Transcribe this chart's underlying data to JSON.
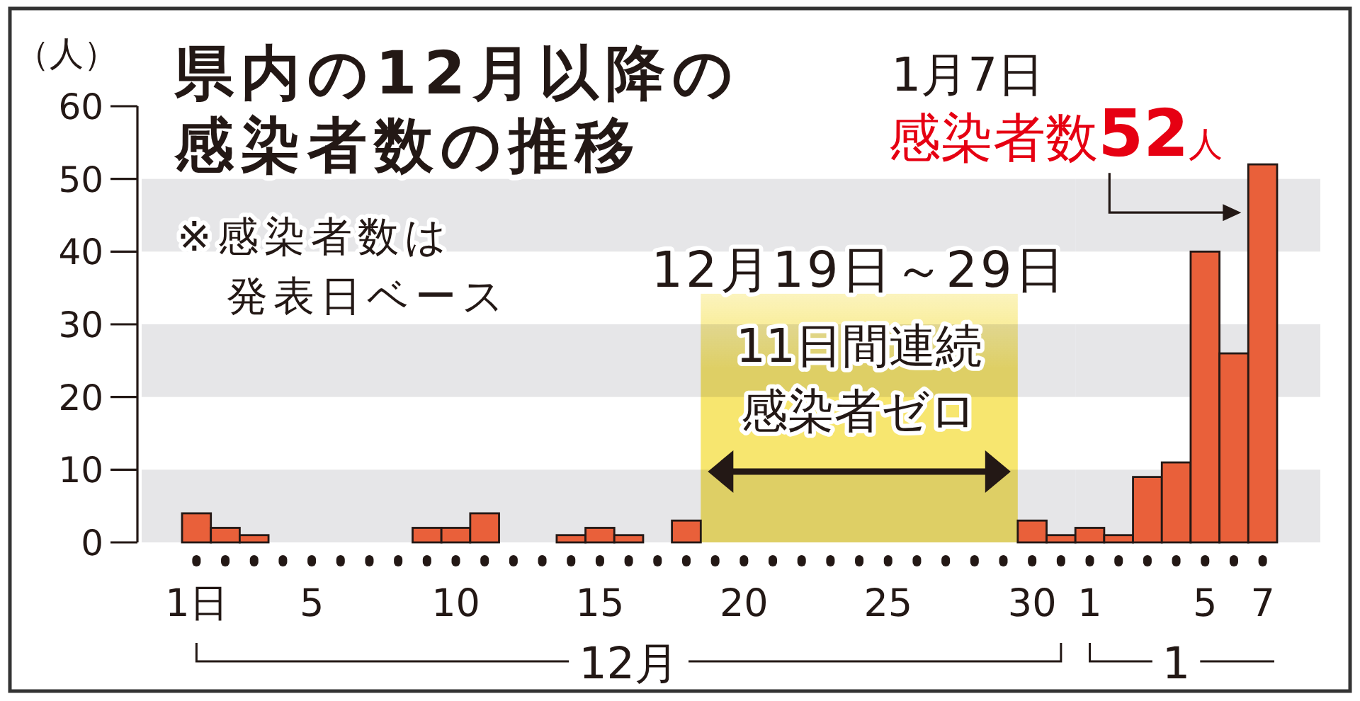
{
  "chart_data": [
    {
      "type": "bar",
      "title": "県内の12月以降の感染者数の推移",
      "ylabel": "（人）",
      "xlabel": "12月",
      "x": [
        1,
        2,
        3,
        4,
        5,
        6,
        7,
        8,
        9,
        10,
        11,
        12,
        13,
        14,
        15,
        16,
        17,
        18,
        19,
        20,
        21,
        22,
        23,
        24,
        25,
        26,
        27,
        28,
        29,
        30,
        31
      ],
      "values": [
        4,
        2,
        1,
        0,
        0,
        0,
        0,
        0,
        2,
        2,
        4,
        0,
        0,
        1,
        2,
        1,
        0,
        3,
        0,
        0,
        0,
        0,
        0,
        0,
        0,
        0,
        0,
        0,
        0,
        3,
        1
      ],
      "color": "#e9603a",
      "xlim": [
        -1,
        31.5
      ],
      "xticks": [
        {
          "value": 1,
          "label": "1日"
        },
        {
          "value": 2,
          "label": null
        },
        {
          "value": 3,
          "label": null
        },
        {
          "value": 4,
          "label": null
        },
        5,
        {
          "value": 6,
          "label": null
        },
        {
          "value": 7,
          "label": null
        },
        {
          "value": 8,
          "label": null
        },
        {
          "value": 9,
          "label": null
        },
        10,
        {
          "value": 11,
          "label": null
        },
        {
          "value": 12,
          "label": null
        },
        {
          "value": 13,
          "label": null
        },
        {
          "value": 14,
          "label": null
        },
        15,
        {
          "value": 16,
          "label": null
        },
        {
          "value": 17,
          "label": null
        },
        {
          "value": 18,
          "label": null
        },
        {
          "value": 19,
          "label": null
        },
        20,
        {
          "value": 21,
          "label": null
        },
        {
          "value": 22,
          "label": null
        },
        {
          "value": 23,
          "label": null
        },
        {
          "value": 24,
          "label": null
        },
        25,
        {
          "value": 26,
          "label": null
        },
        {
          "value": 27,
          "label": null
        },
        {
          "value": 28,
          "label": null
        },
        {
          "value": 29,
          "label": null
        },
        30,
        {
          "value": 31,
          "label": null
        }
      ],
      "ylim": [
        0,
        60
      ],
      "yticks": [
        0,
        10,
        20,
        30,
        40,
        50,
        60
      ],
      "bands": [
        {
          "axis": "y",
          "from": 0,
          "to": 10,
          "color": "#e6e6e8"
        },
        {
          "axis": "y",
          "from": 20,
          "to": 30,
          "color": "#e6e6e8"
        },
        {
          "axis": "y",
          "from": 40,
          "to": 50,
          "color": "#e6e6e8"
        },
        {
          "axis": "x",
          "from": 18.5,
          "to": 29.5,
          "label": "12月19日～29日",
          "color": "#f7e66f"
        }
      ],
      "annotations": [
        "※感染者数は発表日ベース",
        "11日間連続感染者ゼロ"
      ]
    },
    {
      "type": "bar",
      "xlabel": "1",
      "x": [
        1,
        2,
        3,
        4,
        5,
        6,
        7
      ],
      "values": [
        2,
        1,
        9,
        11,
        40,
        26,
        52
      ],
      "color": "#e9603a",
      "xlim": [
        0.5,
        9
      ],
      "xticks": [
        1,
        {
          "value": 2,
          "label": null
        },
        {
          "value": 3,
          "label": null
        },
        {
          "value": 4,
          "label": null
        },
        5,
        {
          "value": 6,
          "label": null
        },
        7
      ],
      "ylim": [
        0,
        60
      ],
      "tick_labels": "x",
      "bands": [
        {
          "axis": "y",
          "from": 0,
          "to": 10,
          "color": "#e6e6e8"
        },
        {
          "axis": "y",
          "from": 20,
          "to": 30,
          "color": "#e6e6e8"
        },
        {
          "axis": "y",
          "from": 40,
          "to": 50,
          "color": "#e6e6e8"
        }
      ],
      "annotations": [
        "1月7日",
        {
          "text": "感染者数52人",
          "x": 7,
          "y": 52
        }
      ]
    }
  ]
}
